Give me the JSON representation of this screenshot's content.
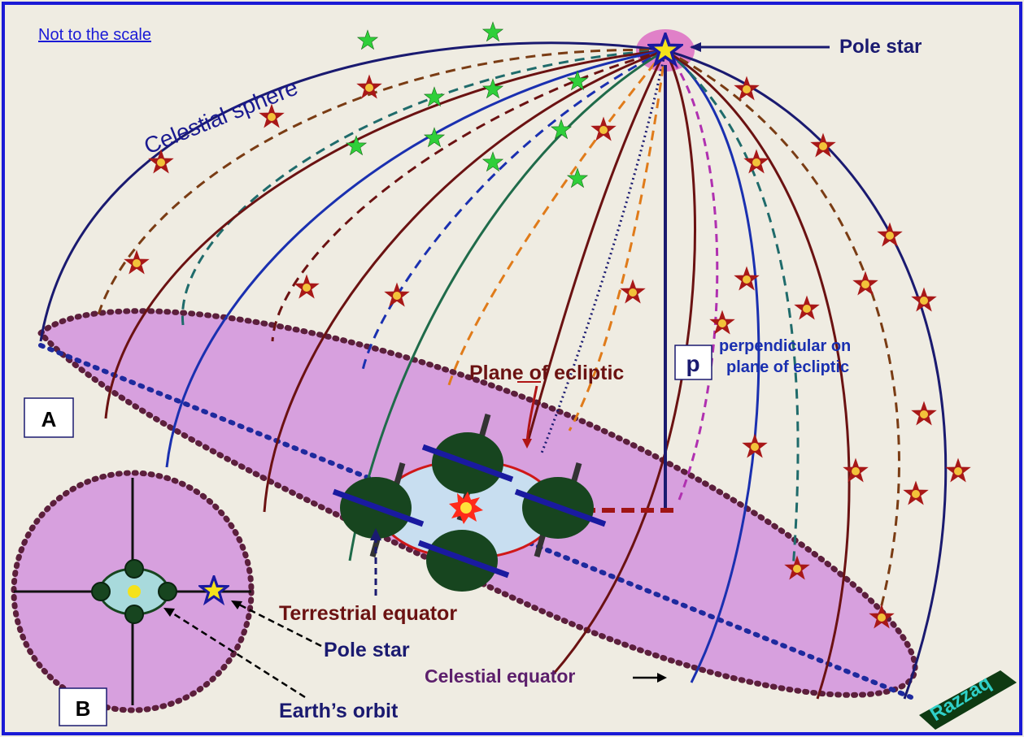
{
  "diagram": {
    "note": "Not to the scale",
    "celestial_sphere_label": "Celestial sphere",
    "pole_star_label": "Pole star",
    "plane_of_ecliptic_label": "Plane of ecliptic",
    "p_label": "p",
    "perpendicular_label_line1": "perpendicular on",
    "perpendicular_label_line2": "plane of ecliptic",
    "box_a": "A",
    "box_b": "B",
    "terrestrial_equator_label": "Terrestrial equator",
    "pole_star_label_b": "Pole star",
    "celestial_equator_label": "Celestial equator",
    "earths_orbit_label": "Earth’s orbit",
    "signature": "Razzaq"
  },
  "colors": {
    "frame": "#1a1ad6",
    "background": "#efece2",
    "plane_fill": "#d7a0de",
    "plane_border": "#5c1f3c",
    "navy": "#1a1a70",
    "maroon": "#6b1212",
    "earth": "#17451f",
    "star_red": "#a81818",
    "star_gold": "#f2c23a",
    "star_green": "#2fcf3a"
  }
}
